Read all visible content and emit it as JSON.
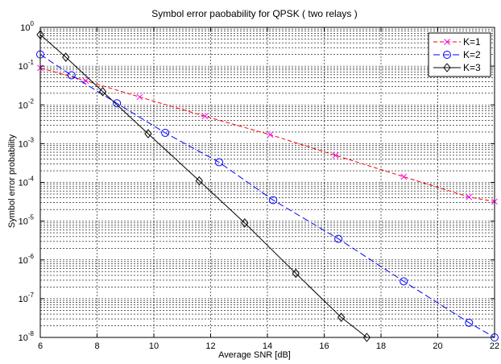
{
  "chart_data": {
    "type": "line",
    "title": "Symbol error paobability for QPSK ( two relays )",
    "xlabel": "Average SNR [dB]",
    "ylabel": "Symbol error probability",
    "xlim": [
      6,
      22
    ],
    "ylim": [
      1e-08,
      1
    ],
    "yscale": "log",
    "grid": true,
    "legend_position": "top-right",
    "x_ticks": [
      6,
      8,
      10,
      12,
      14,
      16,
      18,
      20,
      22
    ],
    "y_ticks": [
      {
        "value": 1,
        "exp": "0"
      },
      {
        "value": 0.1,
        "exp": "-1"
      },
      {
        "value": 0.01,
        "exp": "-2"
      },
      {
        "value": 0.001,
        "exp": "-3"
      },
      {
        "value": 0.0001,
        "exp": "-4"
      },
      {
        "value": 1e-05,
        "exp": "-5"
      },
      {
        "value": 1e-06,
        "exp": "-6"
      },
      {
        "value": 1e-07,
        "exp": "-7"
      },
      {
        "value": 1e-08,
        "exp": "-8"
      }
    ],
    "series": [
      {
        "name": "K=1",
        "color": "#ff0000",
        "marker_color": "#ff00ff",
        "marker": "x",
        "dash": "5,3",
        "x": [
          6.0,
          7.6,
          9.5,
          11.8,
          14.1,
          16.4,
          18.8,
          21.1,
          22.0
        ],
        "y": [
          0.09,
          0.042,
          0.016,
          0.0051,
          0.0017,
          0.0005,
          0.00014,
          4.2e-05,
          3.2e-05
        ],
        "markers_x": [
          6.0,
          7.6,
          9.5,
          11.8,
          14.1,
          16.4,
          18.8,
          21.1,
          22.0
        ],
        "markers_y": [
          0.09,
          0.042,
          0.016,
          0.0051,
          0.0017,
          0.0005,
          0.00014,
          4.2e-05,
          3.2e-05
        ]
      },
      {
        "name": "K=2",
        "color": "#0000ff",
        "marker_color": "#0000ff",
        "marker": "o",
        "dash": "8,4",
        "x": [
          6.0,
          7.1,
          8.7,
          10.4,
          12.3,
          14.2,
          16.5,
          18.8,
          21.1,
          22.0
        ],
        "y": [
          0.2,
          0.058,
          0.011,
          0.0019,
          0.00033,
          3.5e-05,
          3.5e-06,
          2.8e-07,
          2.4e-08,
          1e-08
        ],
        "markers_x": [
          6.0,
          7.1,
          8.7,
          10.4,
          12.3,
          14.2,
          16.5,
          18.8,
          21.1,
          22.0
        ],
        "markers_y": [
          0.2,
          0.058,
          0.011,
          0.0019,
          0.00033,
          3.5e-05,
          3.5e-06,
          2.8e-07,
          2.4e-08,
          1e-08
        ]
      },
      {
        "name": "K=3",
        "color": "#000000",
        "marker_color": "#000000",
        "marker": "d",
        "dash": "",
        "x": [
          6.0,
          6.9,
          8.2,
          9.8,
          11.6,
          13.2,
          15.0,
          16.6,
          17.5
        ],
        "y": [
          0.65,
          0.17,
          0.022,
          0.0018,
          0.00011,
          9e-06,
          4.5e-07,
          3.3e-08,
          1e-08
        ],
        "markers_x": [
          6.0,
          6.9,
          8.2,
          9.8,
          11.6,
          13.2,
          15.0,
          16.6,
          17.5
        ],
        "markers_y": [
          0.65,
          0.17,
          0.022,
          0.0018,
          0.00011,
          9e-06,
          4.5e-07,
          3.3e-08,
          1e-08
        ]
      }
    ]
  }
}
